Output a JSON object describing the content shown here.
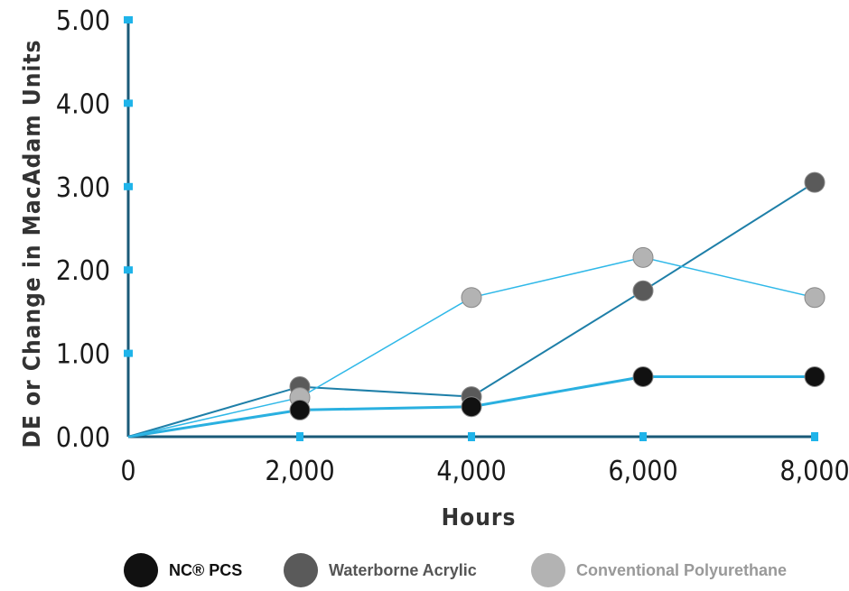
{
  "chart_data": {
    "type": "line",
    "xlabel": "Hours",
    "ylabel": "DE or Change in MacAdam Units",
    "x": [
      0,
      2000,
      4000,
      6000,
      8000
    ],
    "x_tick_labels": [
      "0",
      "2,000",
      "4,000",
      "6,000",
      "8,000"
    ],
    "y_tick_labels": [
      "0.00",
      "1.00",
      "2.00",
      "3.00",
      "4.00",
      "5.00"
    ],
    "xlim": [
      0,
      8000
    ],
    "ylim": [
      0,
      5
    ],
    "grid": false,
    "legend_position": "bottom",
    "series": [
      {
        "name": "NC® PCS",
        "values": [
          0,
          0.32,
          0.36,
          0.72,
          0.72
        ],
        "marker_color": "#111111",
        "line_color": "#2ab0e0"
      },
      {
        "name": "Waterborne Acrylic",
        "values": [
          0,
          0.6,
          0.48,
          1.75,
          3.05
        ],
        "marker_color": "#5a5a5a",
        "line_color": "#1e7fa8"
      },
      {
        "name": "Conventional Polyurethane",
        "values": [
          0,
          0.47,
          1.67,
          2.15,
          1.67
        ],
        "marker_color": "#b3b3b3",
        "line_color": "#2fb8e8"
      }
    ]
  },
  "legend": {
    "items": [
      {
        "label": "NC® PCS",
        "color": "#111111",
        "text_color": "#111111"
      },
      {
        "label": "Waterborne Acrylic",
        "color": "#5a5a5a",
        "text_color": "#555555"
      },
      {
        "label": "Conventional Polyurethane",
        "color": "#b3b3b3",
        "text_color": "#999999"
      }
    ]
  },
  "colors": {
    "axis": "#1a5a78",
    "tick_marker": "#1fb4ea"
  }
}
